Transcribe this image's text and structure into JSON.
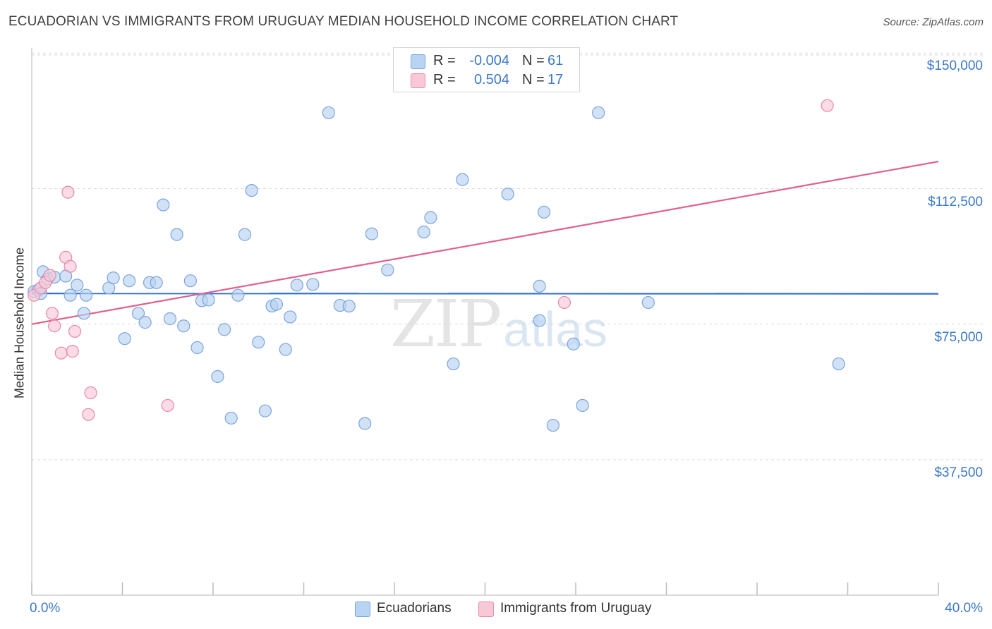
{
  "title": "ECUADORIAN VS IMMIGRANTS FROM URUGUAY MEDIAN HOUSEHOLD INCOME CORRELATION CHART",
  "source": "Source: ZipAtlas.com",
  "watermark": {
    "zip": "ZIP",
    "atlas": "atlas"
  },
  "legend": {
    "series1": {
      "r_label": "R =",
      "r_value": "-0.004",
      "n_label": "N =",
      "n_value": "61"
    },
    "series2": {
      "r_label": "R =",
      "r_value": "0.504",
      "n_label": "N =",
      "n_value": "17"
    }
  },
  "bottom_legend": {
    "series1": "Ecuadorians",
    "series2": "Immigrants from Uruguay"
  },
  "colors": {
    "blue_fill": "#b9d3f3",
    "blue_stroke": "#7aa5dc",
    "blue_line": "#2f6fd0",
    "pink_fill": "#f9c8d7",
    "pink_stroke": "#e88aa8",
    "pink_line": "#e0608e",
    "axis_text": "#3b78c9",
    "grid": "#d9d9d9"
  },
  "chart_data": {
    "type": "scatter",
    "title": "ECUADORIAN VS IMMIGRANTS FROM URUGUAY MEDIAN HOUSEHOLD INCOME CORRELATION CHART",
    "xlabel": "",
    "ylabel": "Median Household Income",
    "xlim": [
      0,
      40
    ],
    "ylim": [
      0,
      153000
    ],
    "x_tick_labels": [
      "0.0%",
      "40.0%"
    ],
    "y_ticks": [
      {
        "value": 37500,
        "label": "$37,500"
      },
      {
        "value": 75000,
        "label": "$75,000"
      },
      {
        "value": 112500,
        "label": "$112,500"
      },
      {
        "value": 150000,
        "label": "$150,000"
      }
    ],
    "x_minor_ticks": [
      0,
      4,
      8,
      12,
      16,
      20,
      24,
      28,
      32,
      36,
      40
    ],
    "series": [
      {
        "name": "Ecuadorians",
        "color": "blue",
        "trend": {
          "x": [
            0,
            40
          ],
          "y": [
            83500,
            83400
          ]
        },
        "points": [
          [
            0.1,
            84000
          ],
          [
            0.3,
            84500
          ],
          [
            0.5,
            89500
          ],
          [
            0.7,
            87500
          ],
          [
            1.0,
            88000
          ],
          [
            1.5,
            88300
          ],
          [
            1.7,
            83000
          ],
          [
            2.0,
            85800
          ],
          [
            2.3,
            78000
          ],
          [
            2.4,
            83000
          ],
          [
            3.4,
            85000
          ],
          [
            3.6,
            87800
          ],
          [
            4.1,
            71000
          ],
          [
            4.3,
            87000
          ],
          [
            4.7,
            78000
          ],
          [
            5.0,
            75500
          ],
          [
            5.2,
            86500
          ],
          [
            5.5,
            86500
          ],
          [
            5.8,
            108000
          ],
          [
            6.1,
            76500
          ],
          [
            6.4,
            99800
          ],
          [
            6.7,
            74500
          ],
          [
            7.0,
            87000
          ],
          [
            7.3,
            68500
          ],
          [
            7.5,
            81500
          ],
          [
            7.8,
            81700
          ],
          [
            8.2,
            60500
          ],
          [
            8.5,
            73500
          ],
          [
            8.8,
            49000
          ],
          [
            9.1,
            83000
          ],
          [
            9.4,
            99800
          ],
          [
            9.7,
            112000
          ],
          [
            10.0,
            70000
          ],
          [
            10.3,
            51000
          ],
          [
            10.6,
            80000
          ],
          [
            10.8,
            80500
          ],
          [
            11.2,
            68000
          ],
          [
            11.4,
            77000
          ],
          [
            11.7,
            85800
          ],
          [
            12.4,
            86000
          ],
          [
            13.1,
            133500
          ],
          [
            13.6,
            80200
          ],
          [
            14.0,
            80000
          ],
          [
            14.7,
            47500
          ],
          [
            15.0,
            100000
          ],
          [
            15.7,
            90000
          ],
          [
            17.3,
            100500
          ],
          [
            17.6,
            104500
          ],
          [
            18.6,
            64000
          ],
          [
            19.0,
            115000
          ],
          [
            21.0,
            111000
          ],
          [
            22.4,
            85500
          ],
          [
            22.4,
            76000
          ],
          [
            22.6,
            106000
          ],
          [
            23.0,
            47000
          ],
          [
            23.9,
            69500
          ],
          [
            24.3,
            52500
          ],
          [
            25.0,
            133500
          ],
          [
            27.2,
            81000
          ],
          [
            35.6,
            64000
          ],
          [
            0.4,
            83500
          ]
        ]
      },
      {
        "name": "Immigrants from Uruguay",
        "color": "pink",
        "trend": {
          "x": [
            0,
            40
          ],
          "y": [
            75000,
            120000
          ]
        },
        "points": [
          [
            0.1,
            83000
          ],
          [
            0.4,
            85000
          ],
          [
            0.6,
            86500
          ],
          [
            0.8,
            88500
          ],
          [
            0.9,
            78000
          ],
          [
            1.0,
            74500
          ],
          [
            1.3,
            67000
          ],
          [
            1.5,
            93500
          ],
          [
            1.6,
            111500
          ],
          [
            1.7,
            91000
          ],
          [
            1.8,
            67500
          ],
          [
            1.9,
            73000
          ],
          [
            2.5,
            50000
          ],
          [
            2.6,
            56000
          ],
          [
            6.0,
            52500
          ],
          [
            23.5,
            81000
          ],
          [
            35.1,
            135500
          ]
        ]
      }
    ]
  }
}
